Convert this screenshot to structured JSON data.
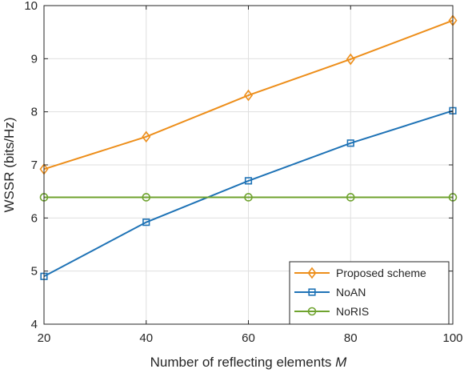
{
  "chart_data": {
    "type": "line",
    "title": "",
    "xlabel": "Number of reflecting elements",
    "xlabel_var": "M",
    "ylabel": "WSSR (bits/Hz)",
    "x": [
      20,
      40,
      60,
      80,
      100
    ],
    "xlim": [
      20,
      100
    ],
    "ylim": [
      4,
      10
    ],
    "xticks": [
      "20",
      "40",
      "60",
      "80",
      "100"
    ],
    "yticks": [
      "4",
      "5",
      "6",
      "7",
      "8",
      "9",
      "10"
    ],
    "grid": true,
    "legend_position": "bottom-right",
    "series": [
      {
        "name": "Proposed scheme",
        "color": "#ED8E1A",
        "marker": "diamond",
        "values": [
          6.92,
          7.53,
          8.31,
          8.99,
          9.72
        ]
      },
      {
        "name": "NoAN",
        "color": "#1F73B6",
        "marker": "square",
        "values": [
          4.9,
          5.92,
          6.7,
          7.41,
          8.02
        ]
      },
      {
        "name": "NoRIS",
        "color": "#6FA32F",
        "marker": "circle",
        "values": [
          6.39,
          6.39,
          6.39,
          6.39,
          6.39
        ]
      }
    ]
  }
}
